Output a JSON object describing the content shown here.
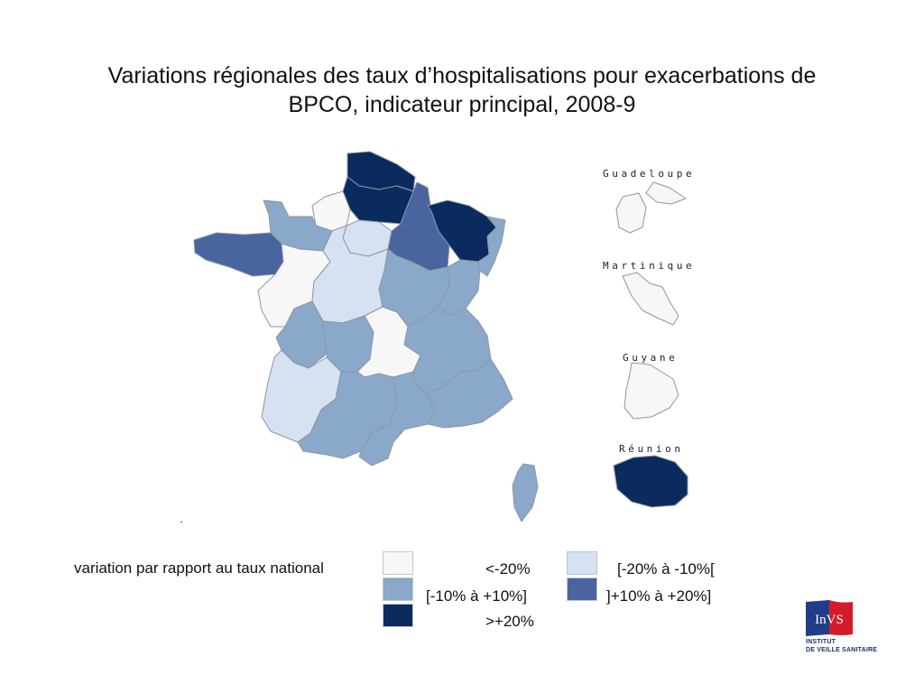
{
  "title": {
    "line1": "Variations régionales des taux d’hospitalisations pour exacerbations de",
    "line2": "BPCO, indicateur principal, 2008-9"
  },
  "colors": {
    "lt_minus20": "#f7f7f8",
    "m20_m10": "#d6e2f1",
    "m10_p10": "#8aa8c9",
    "p10_p20": "#4a64a0",
    "gt_plus20": "#0b2a5e",
    "border": "#8e96a3"
  },
  "overseas": [
    {
      "name": "Guadeloupe",
      "class": "lt_minus20"
    },
    {
      "name": "Martinique",
      "class": "lt_minus20"
    },
    {
      "name": "Guyane",
      "class": "lt_minus20"
    },
    {
      "name": "Réunion",
      "class": "gt_plus20"
    }
  ],
  "regions": [
    {
      "id": "nord-pas-de-calais",
      "class": "gt_plus20"
    },
    {
      "id": "picardie",
      "class": "gt_plus20"
    },
    {
      "id": "haute-normandie",
      "class": "lt_minus20"
    },
    {
      "id": "basse-normandie",
      "class": "m10_p10"
    },
    {
      "id": "bretagne",
      "class": "p10_p20"
    },
    {
      "id": "pays-de-la-loire",
      "class": "lt_minus20"
    },
    {
      "id": "centre",
      "class": "m20_m10"
    },
    {
      "id": "ile-de-france",
      "class": "m20_m10"
    },
    {
      "id": "champagne-ardenne",
      "class": "p10_p20"
    },
    {
      "id": "lorraine",
      "class": "gt_plus20"
    },
    {
      "id": "alsace",
      "class": "m10_p10"
    },
    {
      "id": "bourgogne",
      "class": "m10_p10"
    },
    {
      "id": "franche-comte",
      "class": "m10_p10"
    },
    {
      "id": "poitou-charentes",
      "class": "m10_p10"
    },
    {
      "id": "limousin",
      "class": "m10_p10"
    },
    {
      "id": "auvergne",
      "class": "lt_minus20"
    },
    {
      "id": "rhone-alpes",
      "class": "m10_p10"
    },
    {
      "id": "aquitaine",
      "class": "m20_m10"
    },
    {
      "id": "midi-pyrenees",
      "class": "m10_p10"
    },
    {
      "id": "languedoc-roussillon",
      "class": "m10_p10"
    },
    {
      "id": "provence-alpes-cote-d-azur",
      "class": "m10_p10"
    },
    {
      "id": "corse",
      "class": "m10_p10"
    }
  ],
  "legend": {
    "caption": "variation par rapport au taux national",
    "items": [
      {
        "key": "lt_minus20",
        "label": "<-20%"
      },
      {
        "key": "m20_m10",
        "label": "[-20% à -10%["
      },
      {
        "key": "m10_p10",
        "label": "[-10% à +10%]"
      },
      {
        "key": "p10_p20",
        "label": "]+10% à +20%]"
      },
      {
        "key": "gt_plus20",
        "label": ">+20%"
      }
    ]
  },
  "logo": {
    "mark": "InVS",
    "line1": "INSTITUT",
    "line2": "DE VEILLE SANITAIRE"
  }
}
